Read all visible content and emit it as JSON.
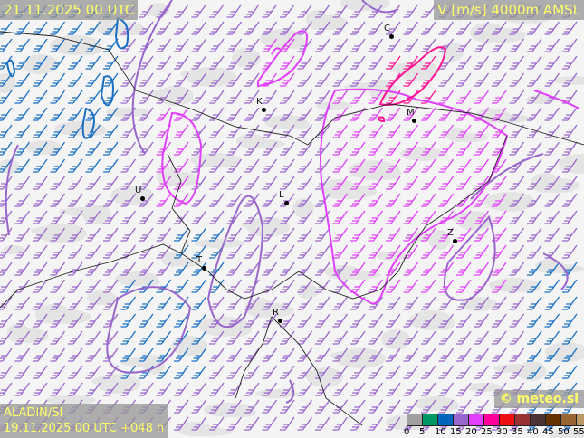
{
  "header": {
    "valid_time": "21.11.2025 00 UTC",
    "parameter": "V [m/s] 4000m AMSL"
  },
  "footer": {
    "model": "ALADIN/SI",
    "run": "19.11.2025 00 UTC +048 h",
    "brand": "© meteo.si"
  },
  "legend": {
    "colors": [
      "#a0a0a0",
      "#009966",
      "#0066bb",
      "#9966cc",
      "#e040fb",
      "#ff0099",
      "#ee1111",
      "#993333",
      "#4d3333",
      "#663300",
      "#996633",
      "#bb9966"
    ],
    "ticks": [
      "0",
      "5",
      "10",
      "15",
      "20",
      "25",
      "30",
      "35",
      "40",
      "45",
      "50",
      "55"
    ]
  },
  "cities": [
    "C",
    "K",
    "M",
    "U",
    "L",
    "T",
    "Z",
    "R"
  ],
  "wind_colors": {
    "class10": "#1a6fc4",
    "class15": "#9966cc",
    "class20": "#e040fb",
    "class25": "#ff1493"
  }
}
